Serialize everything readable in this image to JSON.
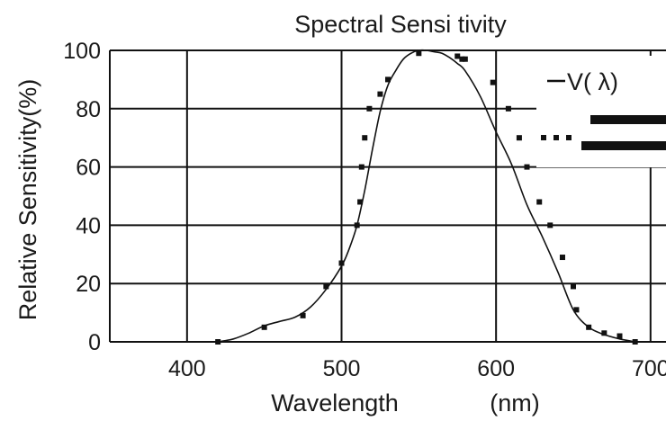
{
  "chart_data": {
    "type": "line",
    "title": "Spectral Sensi tivity",
    "xlabel": "Wavelength",
    "xunit": "(nm)",
    "ylabel": "Relative Sensitivity(%)",
    "xlim": [
      350,
      710
    ],
    "ylim": [
      0,
      100
    ],
    "xticks": [
      "400",
      "500",
      "600",
      "700"
    ],
    "yticks": [
      "0",
      "20",
      "40",
      "60",
      "80",
      "100"
    ],
    "grid": true,
    "legend": {
      "position": "top-right",
      "entries": [
        {
          "label": "V( λ)",
          "style": "solid"
        },
        {
          "label": "",
          "style": "dotted"
        }
      ]
    },
    "series": [
      {
        "name": "V( λ)",
        "style": "solid",
        "x": [
          420,
          430,
          440,
          450,
          460,
          470,
          480,
          490,
          500,
          505,
          510,
          515,
          520,
          525,
          530,
          535,
          540,
          545,
          550,
          555,
          560,
          565,
          570,
          575,
          580,
          590,
          600,
          610,
          620,
          630,
          640,
          650,
          660,
          670,
          680,
          690
        ],
        "y": [
          0,
          1,
          3,
          5.5,
          7,
          8.5,
          12,
          18,
          26,
          32,
          40,
          52,
          66,
          79,
          88,
          93,
          97,
          99,
          100,
          100,
          99.5,
          99,
          97.5,
          95.5,
          93,
          84,
          72,
          61,
          47,
          36,
          24,
          11,
          5,
          2.5,
          1,
          0
        ]
      },
      {
        "name": "",
        "style": "dotted",
        "x": [
          420,
          450,
          475,
          490,
          500,
          510,
          512,
          513,
          515,
          518,
          525,
          530,
          550,
          575,
          578,
          580,
          598,
          608,
          615,
          620,
          628,
          635,
          643,
          650,
          652,
          660,
          670,
          680,
          690
        ],
        "y": [
          0,
          5,
          9,
          19,
          27,
          40,
          48,
          60,
          70,
          80,
          85,
          90,
          99,
          98,
          97,
          97,
          89,
          80,
          70,
          60,
          48,
          40,
          29,
          19,
          11,
          5,
          3,
          2,
          0
        ]
      }
    ]
  }
}
